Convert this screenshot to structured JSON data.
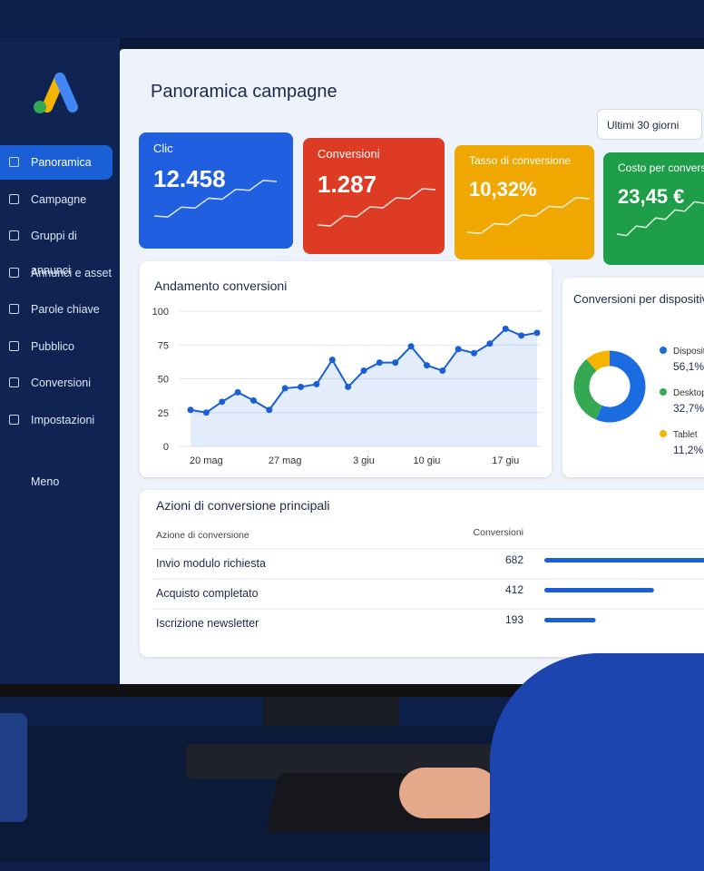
{
  "sidebar": {
    "items": [
      "Panoramica",
      "Campagne",
      "Gruppi di annunci",
      "Annunci e asset",
      "Parole chiave",
      "Pubblico",
      "Conversioni",
      "Impostazioni"
    ],
    "more": "Meno"
  },
  "header": {
    "title": "Panoramica campagne",
    "range": "Ultimi 30 giorni"
  },
  "kpis": [
    {
      "label": "Clic",
      "value": "12.458"
    },
    {
      "label": "Conversioni",
      "value": "1.287"
    },
    {
      "label": "Tasso di conversione",
      "value": "10,32%"
    },
    {
      "label": "Costo per conversion",
      "value": "23,45 €"
    }
  ],
  "chart_data": [
    {
      "type": "line",
      "title": "Andamento conversioni",
      "categories": [
        null,
        "20 mag",
        null,
        null,
        null,
        null,
        "27 mag",
        null,
        null,
        null,
        null,
        "3 giu",
        null,
        null,
        null,
        "10 giu",
        null,
        null,
        null,
        null,
        "17 giu",
        null,
        null
      ],
      "values": [
        27,
        25,
        33,
        40,
        34,
        27,
        43,
        44,
        46,
        64,
        44,
        56,
        62,
        62,
        74,
        60,
        56,
        72,
        69,
        76,
        87,
        82,
        84
      ],
      "color": "#1a5fd6",
      "ylim": [
        0,
        100
      ],
      "yticks": [
        0,
        25,
        50,
        75,
        100
      ],
      "grid": true
    },
    {
      "type": "pie",
      "title": "Conversioni per dispositivo",
      "categories": [
        "Dispositi",
        "Desktop",
        "Tablet"
      ],
      "values": [
        56.1,
        32.7,
        11.2
      ],
      "value_labels": [
        "56,1%",
        "32,7%",
        "11,2%"
      ],
      "colors": [
        "#1a6ce0",
        "#34a853",
        "#f4b400"
      ]
    }
  ],
  "table": {
    "title": "Azioni di conversione principali",
    "columns": [
      "Azione di conversione",
      "Conversioni"
    ],
    "rows": [
      {
        "name": "Invio modulo richiesta",
        "value": 682
      },
      {
        "name": "Acquisto completato",
        "value": 412
      },
      {
        "name": "Iscrizione newsletter",
        "value": 193
      }
    ],
    "bar_color": "#1a5fd6"
  }
}
